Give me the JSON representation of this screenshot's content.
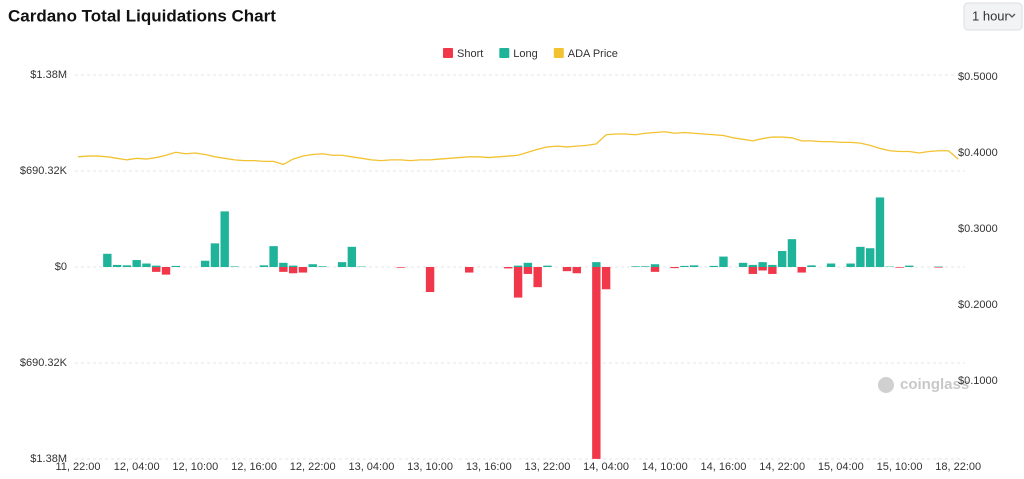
{
  "chart_data": {
    "type": "bar",
    "title": "Cardano Total Liquidations Chart",
    "interval": "1 hour",
    "watermark": "coinglass",
    "categories": [
      "11, 22:00",
      null,
      null,
      null,
      null,
      null,
      "12, 04:00",
      null,
      null,
      null,
      null,
      null,
      "12, 10:00",
      null,
      null,
      null,
      null,
      null,
      "12, 16:00",
      null,
      null,
      null,
      null,
      null,
      "12, 22:00",
      null,
      null,
      null,
      null,
      null,
      "13, 04:00",
      null,
      null,
      null,
      null,
      null,
      "13, 10:00",
      null,
      null,
      null,
      null,
      null,
      "13, 16:00",
      null,
      null,
      null,
      null,
      null,
      "13, 22:00",
      null,
      null,
      null,
      null,
      null,
      "14, 04:00",
      null,
      null,
      null,
      null,
      null,
      "14, 10:00",
      null,
      null,
      null,
      null,
      null,
      "14, 16:00",
      null,
      null,
      null,
      null,
      null,
      "14, 22:00",
      null,
      null,
      null,
      null,
      null,
      "15, 04:00",
      null,
      null,
      null,
      null,
      null,
      "15, 10:00",
      null,
      null,
      null,
      null,
      null,
      "18, 22:00"
    ],
    "series": [
      {
        "name": "Short",
        "color": "#f0384a",
        "values": [
          0,
          0,
          0,
          0,
          0,
          0,
          0,
          0,
          -35000,
          -55000,
          0,
          0,
          0,
          0,
          0,
          0,
          0,
          0,
          0,
          0,
          0,
          -35000,
          -45000,
          -40000,
          0,
          0,
          0,
          0,
          0,
          0,
          0,
          0,
          0,
          -5000,
          0,
          0,
          -180000,
          0,
          0,
          0,
          -40000,
          0,
          0,
          0,
          -10000,
          -220000,
          -50000,
          -145000,
          0,
          0,
          -30000,
          -45000,
          0,
          -1380000,
          -160000,
          0,
          0,
          0,
          0,
          -35000,
          0,
          -8000,
          0,
          0,
          0,
          0,
          0,
          0,
          0,
          -50000,
          -25000,
          -50000,
          0,
          0,
          -40000,
          0,
          0,
          0,
          0,
          0,
          0,
          0,
          0,
          0,
          -5000,
          0,
          0,
          0,
          -4000,
          0,
          0
        ]
      },
      {
        "name": "Long",
        "color": "#1fb39a",
        "values": [
          0,
          0,
          0,
          95000,
          15000,
          12000,
          50000,
          25000,
          10000,
          0,
          8000,
          0,
          0,
          45000,
          170000,
          400000,
          4000,
          0,
          0,
          12000,
          150000,
          30000,
          10000,
          0,
          20000,
          5000,
          0,
          35000,
          145000,
          3000,
          0,
          0,
          0,
          0,
          0,
          0,
          0,
          0,
          0,
          0,
          0,
          0,
          0,
          0,
          0,
          10000,
          30000,
          0,
          10000,
          0,
          0,
          0,
          0,
          35000,
          0,
          0,
          0,
          5000,
          5000,
          20000,
          0,
          0,
          8000,
          12000,
          0,
          8000,
          75000,
          0,
          30000,
          15000,
          35000,
          15000,
          115000,
          200000,
          0,
          12000,
          0,
          25000,
          0,
          25000,
          145000,
          135000,
          500000,
          3000,
          0,
          10000,
          0,
          0,
          3000,
          0,
          0
        ]
      },
      {
        "name": "ADA Price",
        "color": "#f2c230",
        "type": "line",
        "axis": "y2",
        "values": [
          0.395,
          0.396,
          0.396,
          0.395,
          0.393,
          0.391,
          0.393,
          0.392,
          0.394,
          0.397,
          0.401,
          0.399,
          0.4,
          0.398,
          0.395,
          0.393,
          0.391,
          0.39,
          0.39,
          0.389,
          0.389,
          0.385,
          0.392,
          0.396,
          0.398,
          0.399,
          0.397,
          0.397,
          0.395,
          0.393,
          0.391,
          0.39,
          0.391,
          0.391,
          0.39,
          0.391,
          0.391,
          0.392,
          0.393,
          0.394,
          0.395,
          0.395,
          0.394,
          0.395,
          0.396,
          0.397,
          0.401,
          0.405,
          0.408,
          0.409,
          0.408,
          0.409,
          0.41,
          0.412,
          0.424,
          0.425,
          0.425,
          0.424,
          0.426,
          0.427,
          0.428,
          0.426,
          0.427,
          0.426,
          0.425,
          0.424,
          0.423,
          0.42,
          0.418,
          0.416,
          0.419,
          0.421,
          0.421,
          0.42,
          0.416,
          0.416,
          0.415,
          0.415,
          0.414,
          0.414,
          0.413,
          0.41,
          0.406,
          0.403,
          0.402,
          0.402,
          0.4,
          0.402,
          0.403,
          0.403,
          0.392
        ]
      }
    ],
    "ylim": [
      -1380640,
      1380640
    ],
    "yticks": [
      {
        "value": 1380640,
        "label": "$1.38M"
      },
      {
        "value": 690320,
        "label": "$690.32K"
      },
      {
        "value": 0,
        "label": "$0"
      },
      {
        "value": -690320,
        "label": "$690.32K"
      },
      {
        "value": -1380640,
        "label": "$1.38M"
      }
    ],
    "y2lim": [
      0,
      0.5
    ],
    "y2ticks": [
      {
        "value": 0.5,
        "label": "$0.5000"
      },
      {
        "value": 0.4,
        "label": "$0.4000"
      },
      {
        "value": 0.3,
        "label": "$0.3000"
      },
      {
        "value": 0.2,
        "label": "$0.2000"
      },
      {
        "value": 0.1,
        "label": "$0.1000"
      }
    ],
    "grid": true,
    "legend": "top"
  }
}
